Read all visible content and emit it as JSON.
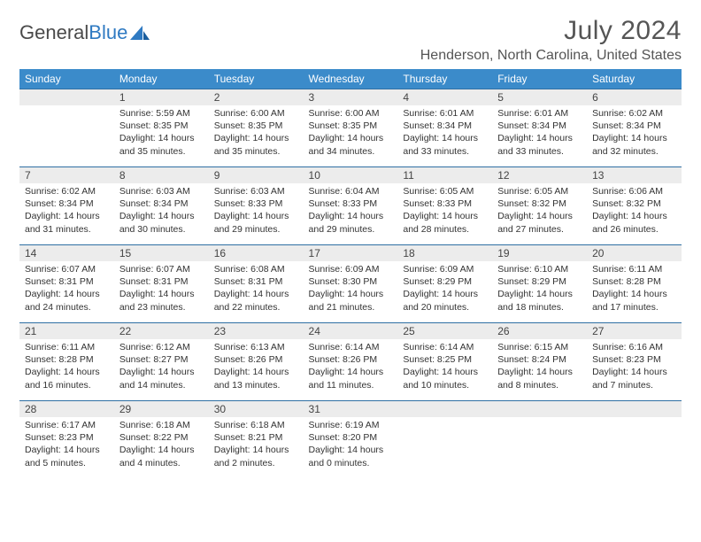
{
  "brand": {
    "part1": "General",
    "part2": "Blue"
  },
  "title": "July 2024",
  "location": "Henderson, North Carolina, United States",
  "columns": [
    "Sunday",
    "Monday",
    "Tuesday",
    "Wednesday",
    "Thursday",
    "Friday",
    "Saturday"
  ],
  "colors": {
    "header_bg": "#3b8bca",
    "header_text": "#ffffff",
    "daynum_bg": "#ececec",
    "week_divider": "#2f6fa3",
    "title_color": "#555555",
    "logo_gray": "#4a4a4a",
    "logo_blue": "#2f7ac2"
  },
  "weeks": [
    [
      {
        "n": "",
        "lines": []
      },
      {
        "n": "1",
        "lines": [
          "Sunrise: 5:59 AM",
          "Sunset: 8:35 PM",
          "Daylight: 14 hours and 35 minutes."
        ]
      },
      {
        "n": "2",
        "lines": [
          "Sunrise: 6:00 AM",
          "Sunset: 8:35 PM",
          "Daylight: 14 hours and 35 minutes."
        ]
      },
      {
        "n": "3",
        "lines": [
          "Sunrise: 6:00 AM",
          "Sunset: 8:35 PM",
          "Daylight: 14 hours and 34 minutes."
        ]
      },
      {
        "n": "4",
        "lines": [
          "Sunrise: 6:01 AM",
          "Sunset: 8:34 PM",
          "Daylight: 14 hours and 33 minutes."
        ]
      },
      {
        "n": "5",
        "lines": [
          "Sunrise: 6:01 AM",
          "Sunset: 8:34 PM",
          "Daylight: 14 hours and 33 minutes."
        ]
      },
      {
        "n": "6",
        "lines": [
          "Sunrise: 6:02 AM",
          "Sunset: 8:34 PM",
          "Daylight: 14 hours and 32 minutes."
        ]
      }
    ],
    [
      {
        "n": "7",
        "lines": [
          "Sunrise: 6:02 AM",
          "Sunset: 8:34 PM",
          "Daylight: 14 hours and 31 minutes."
        ]
      },
      {
        "n": "8",
        "lines": [
          "Sunrise: 6:03 AM",
          "Sunset: 8:34 PM",
          "Daylight: 14 hours and 30 minutes."
        ]
      },
      {
        "n": "9",
        "lines": [
          "Sunrise: 6:03 AM",
          "Sunset: 8:33 PM",
          "Daylight: 14 hours and 29 minutes."
        ]
      },
      {
        "n": "10",
        "lines": [
          "Sunrise: 6:04 AM",
          "Sunset: 8:33 PM",
          "Daylight: 14 hours and 29 minutes."
        ]
      },
      {
        "n": "11",
        "lines": [
          "Sunrise: 6:05 AM",
          "Sunset: 8:33 PM",
          "Daylight: 14 hours and 28 minutes."
        ]
      },
      {
        "n": "12",
        "lines": [
          "Sunrise: 6:05 AM",
          "Sunset: 8:32 PM",
          "Daylight: 14 hours and 27 minutes."
        ]
      },
      {
        "n": "13",
        "lines": [
          "Sunrise: 6:06 AM",
          "Sunset: 8:32 PM",
          "Daylight: 14 hours and 26 minutes."
        ]
      }
    ],
    [
      {
        "n": "14",
        "lines": [
          "Sunrise: 6:07 AM",
          "Sunset: 8:31 PM",
          "Daylight: 14 hours and 24 minutes."
        ]
      },
      {
        "n": "15",
        "lines": [
          "Sunrise: 6:07 AM",
          "Sunset: 8:31 PM",
          "Daylight: 14 hours and 23 minutes."
        ]
      },
      {
        "n": "16",
        "lines": [
          "Sunrise: 6:08 AM",
          "Sunset: 8:31 PM",
          "Daylight: 14 hours and 22 minutes."
        ]
      },
      {
        "n": "17",
        "lines": [
          "Sunrise: 6:09 AM",
          "Sunset: 8:30 PM",
          "Daylight: 14 hours and 21 minutes."
        ]
      },
      {
        "n": "18",
        "lines": [
          "Sunrise: 6:09 AM",
          "Sunset: 8:29 PM",
          "Daylight: 14 hours and 20 minutes."
        ]
      },
      {
        "n": "19",
        "lines": [
          "Sunrise: 6:10 AM",
          "Sunset: 8:29 PM",
          "Daylight: 14 hours and 18 minutes."
        ]
      },
      {
        "n": "20",
        "lines": [
          "Sunrise: 6:11 AM",
          "Sunset: 8:28 PM",
          "Daylight: 14 hours and 17 minutes."
        ]
      }
    ],
    [
      {
        "n": "21",
        "lines": [
          "Sunrise: 6:11 AM",
          "Sunset: 8:28 PM",
          "Daylight: 14 hours and 16 minutes."
        ]
      },
      {
        "n": "22",
        "lines": [
          "Sunrise: 6:12 AM",
          "Sunset: 8:27 PM",
          "Daylight: 14 hours and 14 minutes."
        ]
      },
      {
        "n": "23",
        "lines": [
          "Sunrise: 6:13 AM",
          "Sunset: 8:26 PM",
          "Daylight: 14 hours and 13 minutes."
        ]
      },
      {
        "n": "24",
        "lines": [
          "Sunrise: 6:14 AM",
          "Sunset: 8:26 PM",
          "Daylight: 14 hours and 11 minutes."
        ]
      },
      {
        "n": "25",
        "lines": [
          "Sunrise: 6:14 AM",
          "Sunset: 8:25 PM",
          "Daylight: 14 hours and 10 minutes."
        ]
      },
      {
        "n": "26",
        "lines": [
          "Sunrise: 6:15 AM",
          "Sunset: 8:24 PM",
          "Daylight: 14 hours and 8 minutes."
        ]
      },
      {
        "n": "27",
        "lines": [
          "Sunrise: 6:16 AM",
          "Sunset: 8:23 PM",
          "Daylight: 14 hours and 7 minutes."
        ]
      }
    ],
    [
      {
        "n": "28",
        "lines": [
          "Sunrise: 6:17 AM",
          "Sunset: 8:23 PM",
          "Daylight: 14 hours and 5 minutes."
        ]
      },
      {
        "n": "29",
        "lines": [
          "Sunrise: 6:18 AM",
          "Sunset: 8:22 PM",
          "Daylight: 14 hours and 4 minutes."
        ]
      },
      {
        "n": "30",
        "lines": [
          "Sunrise: 6:18 AM",
          "Sunset: 8:21 PM",
          "Daylight: 14 hours and 2 minutes."
        ]
      },
      {
        "n": "31",
        "lines": [
          "Sunrise: 6:19 AM",
          "Sunset: 8:20 PM",
          "Daylight: 14 hours and 0 minutes."
        ]
      },
      {
        "n": "",
        "lines": []
      },
      {
        "n": "",
        "lines": []
      },
      {
        "n": "",
        "lines": []
      }
    ]
  ]
}
